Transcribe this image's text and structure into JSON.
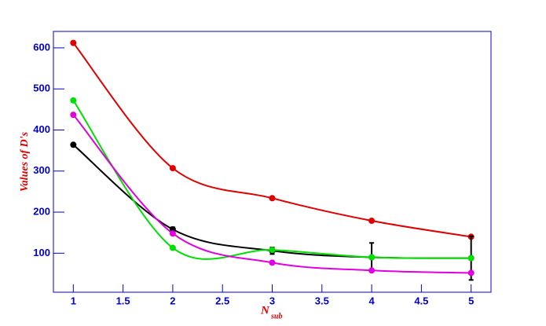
{
  "chart_data": {
    "type": "line",
    "y_label": "Values of D's",
    "x_label": "N",
    "x_label_subscript": "sub",
    "xlim": [
      0.8,
      5.2
    ],
    "ylim": [
      5,
      640
    ],
    "xticks": [
      1,
      1.5,
      2,
      2.5,
      3,
      3.5,
      4,
      4.5,
      5
    ],
    "yticks": [
      100,
      200,
      300,
      400,
      500,
      600
    ],
    "x": [
      1,
      2,
      3,
      4,
      5
    ],
    "series": [
      {
        "color": "#e00000",
        "values": [
          612,
          307,
          234,
          179,
          140
        ]
      },
      {
        "color": "#000000",
        "values": [
          364,
          158,
          106,
          90,
          88
        ],
        "errors": [
          0,
          5,
          8,
          35,
          53
        ]
      },
      {
        "color": "#00e000",
        "values": [
          472,
          113,
          108,
          90,
          88
        ]
      },
      {
        "color": "#e000e0",
        "values": [
          437,
          148,
          77,
          58,
          52
        ]
      }
    ]
  }
}
